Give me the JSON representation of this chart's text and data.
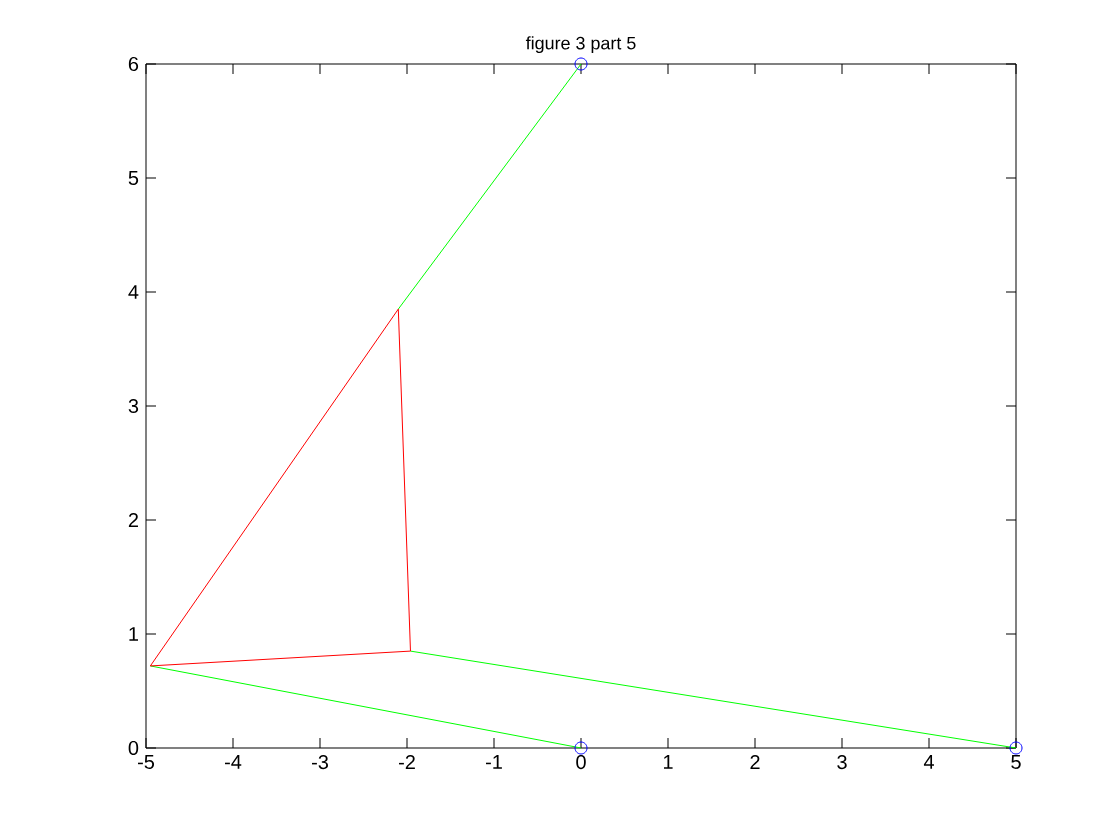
{
  "chart_data": {
    "type": "line",
    "title": "figure 3 part 5",
    "xlim": [
      -5,
      5
    ],
    "ylim": [
      0,
      6
    ],
    "xticks": [
      -5,
      -4,
      -3,
      -2,
      -1,
      0,
      1,
      2,
      3,
      4,
      5
    ],
    "yticks": [
      0,
      1,
      2,
      3,
      4,
      5,
      6
    ],
    "grid": false,
    "series": [
      {
        "color": "#00ff00",
        "x": [
          0,
          -2.1
        ],
        "values": [
          6,
          3.85
        ]
      },
      {
        "color": "#00ff00",
        "x": [
          -4.95,
          0
        ],
        "values": [
          0.72,
          0
        ]
      },
      {
        "color": "#00ff00",
        "x": [
          -1.96,
          5
        ],
        "values": [
          0.85,
          0
        ]
      },
      {
        "color": "#ff0000",
        "x": [
          -4.95,
          -2.1
        ],
        "values": [
          0.72,
          3.85
        ]
      },
      {
        "color": "#ff0000",
        "x": [
          -4.95,
          -1.96
        ],
        "values": [
          0.72,
          0.85
        ]
      },
      {
        "color": "#ff0000",
        "x": [
          -2.1,
          -1.96
        ],
        "values": [
          3.85,
          0.85
        ]
      },
      {
        "type": "scatter",
        "marker": "circle",
        "color": "#0000ff",
        "x": [
          0,
          0,
          5
        ],
        "values": [
          6,
          0,
          0
        ]
      }
    ]
  }
}
